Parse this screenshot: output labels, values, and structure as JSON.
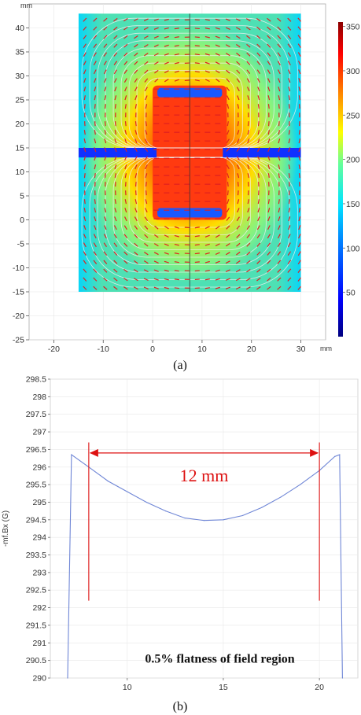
{
  "chart_data": [
    {
      "type": "heatmap",
      "panel_label": "(a)",
      "x_unit": "mm",
      "y_unit": "mm",
      "xlim": [
        -25,
        35
      ],
      "ylim": [
        -25,
        45
      ],
      "x_ticks": [
        "-20",
        "-10",
        "0",
        "10",
        "20",
        "30"
      ],
      "y_ticks": [
        "40",
        "35",
        "30",
        "25",
        "20",
        "15",
        "10",
        "5",
        "0",
        "-5",
        "-10",
        "-15",
        "-20",
        "-25"
      ],
      "colorbar": {
        "min": 0,
        "max": 355,
        "ticks": [
          "350",
          "300",
          "250",
          "200",
          "150",
          "100",
          "50"
        ],
        "colors": [
          "#00007f",
          "#0000ff",
          "#0080ff",
          "#00e5ff",
          "#66ff99",
          "#ffff00",
          "#ff8000",
          "#ff0000",
          "#8b0000"
        ]
      },
      "domain": {
        "x": [
          -15,
          30
        ],
        "y": [
          -15,
          43
        ]
      },
      "magnet_core": {
        "x": [
          0,
          15
        ],
        "y": [
          0,
          28
        ]
      },
      "gap_y": [
        13,
        15
      ],
      "arrow_color": "#e02020",
      "streamline_color": "#f0f0f0"
    },
    {
      "type": "line",
      "panel_label": "(b)",
      "ylabel": "-mf.Bx (G)",
      "xlim": [
        6,
        22
      ],
      "ylim": [
        290,
        298.5
      ],
      "x_ticks": [
        10,
        15,
        20
      ],
      "y_ticks": [
        "290",
        "290.5",
        "291",
        "291.5",
        "292",
        "292.5",
        "293",
        "293.5",
        "294",
        "294.5",
        "295",
        "295.5",
        "296",
        "296.5",
        "297",
        "297.5",
        "298",
        "298.5"
      ],
      "series": [
        {
          "color": "#6f86d6",
          "x": [
            6.9,
            7.1,
            8,
            9,
            10,
            11,
            12,
            13,
            14,
            15,
            16,
            17,
            18,
            19,
            20,
            20.8,
            21.05,
            21.2
          ],
          "y": [
            290,
            296.35,
            296.0,
            295.6,
            295.3,
            295.0,
            294.75,
            294.55,
            294.48,
            294.5,
            294.62,
            294.85,
            295.15,
            295.5,
            295.9,
            296.3,
            296.35,
            290
          ]
        }
      ],
      "annotations": {
        "span_label": "12 mm",
        "span_x": [
          8,
          20
        ],
        "marker_lines_y": [
          292.2,
          296.7
        ],
        "arrow_y": 296.4,
        "color": "#d11",
        "note": "0.5% flatness of field region"
      }
    }
  ]
}
